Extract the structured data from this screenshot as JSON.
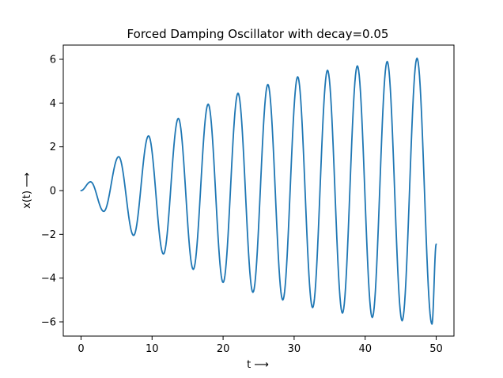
{
  "chart_data": {
    "type": "line",
    "title": "Forced Damping Oscillator with decay=0.05",
    "xlabel": "t ⟶",
    "ylabel": "x(t) ⟶",
    "xlim": [
      -2.5,
      52.5
    ],
    "ylim": [
      -6.65,
      6.65
    ],
    "x_ticks": [
      0,
      10,
      20,
      30,
      40,
      50
    ],
    "x_tick_labels": [
      "0",
      "10",
      "20",
      "30",
      "40",
      "50"
    ],
    "y_ticks": [
      -6,
      -4,
      -2,
      0,
      2,
      4,
      6
    ],
    "y_tick_labels": [
      "−6",
      "−4",
      "−2",
      "0",
      "2",
      "4",
      "6"
    ],
    "grid": false,
    "series": [
      {
        "color": "#1f77b4",
        "x": [
          0,
          1.35,
          3.2,
          5.3,
          7.4,
          9.5,
          11.6,
          13.7,
          15.8,
          17.9,
          20.0,
          22.1,
          24.2,
          26.3,
          28.4,
          30.5,
          32.6,
          34.7,
          36.8,
          38.9,
          41.0,
          43.1,
          45.2,
          47.3,
          49.4,
          50.0
        ],
        "y": [
          0,
          0.4,
          -0.95,
          1.55,
          -2.05,
          2.5,
          -2.9,
          3.3,
          -3.6,
          3.95,
          -4.2,
          4.45,
          -4.65,
          4.85,
          -5.0,
          5.2,
          -5.35,
          5.5,
          -5.6,
          5.7,
          -5.8,
          5.9,
          -5.95,
          6.05,
          -6.1,
          -2.45
        ]
      }
    ]
  }
}
